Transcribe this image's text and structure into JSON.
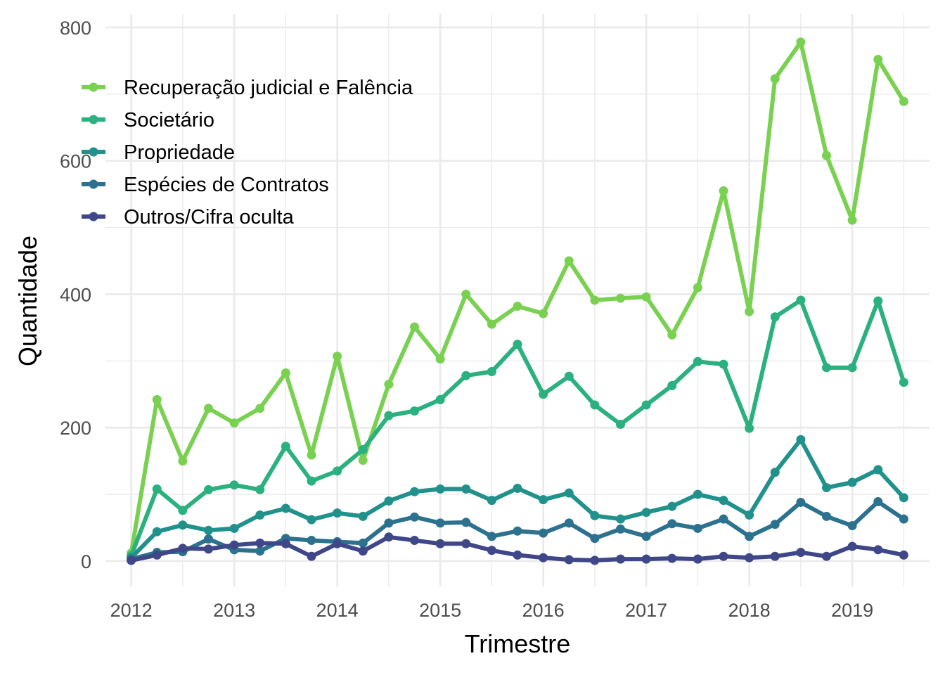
{
  "chart_data": {
    "type": "line",
    "xlabel": "Trimestre",
    "ylabel": "Quantidade",
    "x_ticks": [
      "2012",
      "2013",
      "2014",
      "2015",
      "2016",
      "2017",
      "2018",
      "2019"
    ],
    "y_ticks": [
      "0",
      "200",
      "400",
      "600",
      "800"
    ],
    "xlim": [
      2011.75,
      2019.75
    ],
    "ylim": [
      -38,
      820
    ],
    "grid": true,
    "legend_position": "top-left",
    "x": [
      2012,
      2012.25,
      2012.5,
      2012.75,
      2013,
      2013.25,
      2013.5,
      2013.75,
      2014,
      2014.25,
      2014.5,
      2014.75,
      2015,
      2015.25,
      2015.5,
      2015.75,
      2016,
      2016.25,
      2016.5,
      2016.75,
      2017,
      2017.25,
      2017.5,
      2017.75,
      2018,
      2018.25,
      2018.5,
      2018.75,
      2019,
      2019.25,
      2019.5
    ],
    "series": [
      {
        "name": "Recuperação judicial e Falência",
        "color": "#7AD151",
        "values": [
          12,
          242,
          150,
          229,
          207,
          229,
          282,
          159,
          307,
          151,
          265,
          351,
          303,
          400,
          355,
          382,
          371,
          450,
          391,
          394,
          396,
          339,
          410,
          555,
          374,
          723,
          778,
          608,
          511,
          752,
          689
        ]
      },
      {
        "name": "Societário",
        "color": "#2BB07F",
        "values": [
          8,
          108,
          76,
          107,
          114,
          107,
          172,
          120,
          135,
          167,
          218,
          225,
          242,
          278,
          284,
          325,
          250,
          277,
          234,
          205,
          234,
          263,
          299,
          295,
          199,
          366,
          391,
          290,
          290,
          390,
          268
        ]
      },
      {
        "name": "Propriedade",
        "color": "#21918C",
        "values": [
          5,
          44,
          54,
          46,
          49,
          69,
          79,
          62,
          72,
          67,
          90,
          104,
          108,
          108,
          91,
          109,
          92,
          102,
          68,
          63,
          73,
          82,
          100,
          91,
          69,
          133,
          182,
          110,
          118,
          137,
          95
        ]
      },
      {
        "name": "Espécies de Contratos",
        "color": "#2C728E",
        "values": [
          3,
          13,
          14,
          33,
          17,
          15,
          34,
          31,
          29,
          27,
          57,
          66,
          57,
          58,
          37,
          45,
          42,
          57,
          34,
          48,
          37,
          56,
          49,
          63,
          37,
          55,
          88,
          67,
          53,
          89,
          63
        ]
      },
      {
        "name": "Outros/Cifra oculta",
        "color": "#3F4788",
        "values": [
          1,
          9,
          19,
          18,
          24,
          27,
          26,
          7,
          26,
          15,
          36,
          31,
          26,
          26,
          16,
          9,
          5,
          2,
          1,
          3,
          3,
          4,
          3,
          7,
          5,
          7,
          13,
          7,
          22,
          17,
          9
        ]
      }
    ]
  }
}
